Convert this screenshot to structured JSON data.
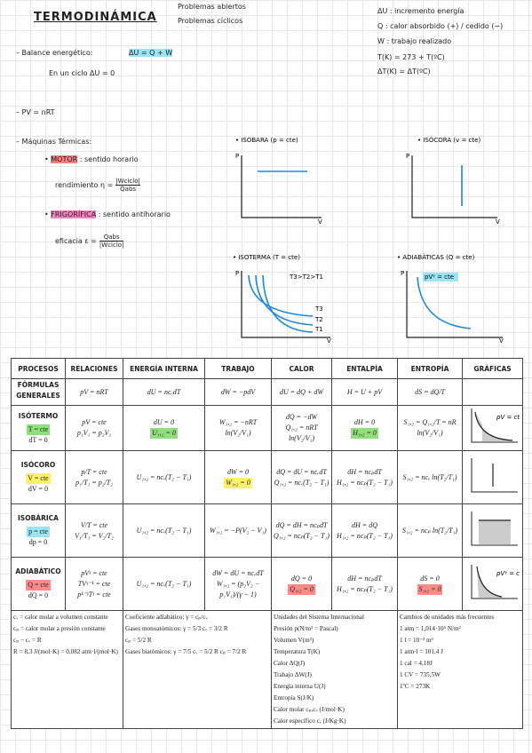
{
  "header": {
    "title": "TERMODINÁMICA",
    "bullets": [
      "Problemas abiertos",
      "Problemas cíclicos"
    ]
  },
  "definitions": [
    "ΔU : incremento energía",
    "Q : calor absorbido (+) / cedido (−)",
    "W : trabajo realizado",
    "T(K) = 273 + T(ºC)",
    "ΔT(K) = ΔT(ºC)"
  ],
  "notes": {
    "balance_label": "– Balance energético:",
    "balance_formula": "ΔU = Q + W",
    "cycle": "En un ciclo  ΔU = 0",
    "gas_law": "– PV = nRT",
    "machines": "– Máquinas Térmicas:",
    "motor": {
      "name": "MOTOR",
      "sense": ": sentido horario",
      "metric": "rendimiento",
      "symbol": "η =",
      "num": "|Wciclo|",
      "den": "Qabs"
    },
    "fridge": {
      "name": "FRIGORÍFICA",
      "sense": ": sentido antihorario",
      "metric": "eficacia",
      "symbol": "ε =",
      "num": "Qabs",
      "den": "|Wciclo|"
    }
  },
  "graphs": [
    {
      "title": "• ISOBARA (p = cte)",
      "y": "P",
      "x": "V"
    },
    {
      "title": "• ISÓCORA (v = cte)",
      "y": "P",
      "x": "V"
    },
    {
      "title": "• ISOTERMA (T = cte)",
      "y": "P",
      "x": "V",
      "labels": [
        "T3>T2>T1",
        "T3",
        "T2",
        "T1"
      ]
    },
    {
      "title": "• ADIABÁTICAS (Q = cte)",
      "y": "P",
      "x": "V",
      "labels": [
        "pVᵞ = cte"
      ]
    }
  ],
  "table": {
    "headers": [
      "PROCESOS",
      "RELACIONES",
      "ENERGÍA INTERNA",
      "TRABAJO",
      "CALOR",
      "ENTALPÍA",
      "ENTROPÍA",
      "GRÁFICAS"
    ],
    "rows": [
      [
        [
          "FÓRMULAS GENERALES"
        ],
        [
          "pV = nRT"
        ],
        [
          "dU = ncᵥdT"
        ],
        [
          "dW = −pdV"
        ],
        [
          "dU = dQ + dW"
        ],
        [
          "H = U + pV"
        ],
        [
          "dS = dQ/T"
        ],
        []
      ],
      [
        [
          "ISÓTERMO",
          "T = cte",
          "dT = 0"
        ],
        [
          "pV = cte",
          "p₁V₁ = p₂V₂"
        ],
        [
          "dU = 0",
          "U₁,₂ = 0"
        ],
        [
          "W₁,₂ = −nRT ln(V₂/V₁)"
        ],
        [
          "dQ = −dW",
          "Q₁,₂ = nRT ln(V₂/V₁)"
        ],
        [
          "dH = 0",
          "H₁,₂ = 0"
        ],
        [
          "S₁,₂ = Q₁,₂/T = nR ln(V₂/V₁)"
        ],
        [
          "pV = cte"
        ]
      ],
      [
        [
          "ISÓCORO",
          "V = cte",
          "dV = 0"
        ],
        [
          "p/T = cte",
          "p₁/T₁ = p₂/T₂"
        ],
        [
          "U₁,₂ = ncᵥ(T₂ − T₁)"
        ],
        [
          "dW = 0",
          "W₁,₂ = 0"
        ],
        [
          "dQ = dU = ncᵥdT",
          "Q₁,₂ = ncᵥ(T₂ − T₁)"
        ],
        [
          "dH = ncₚdT",
          "H₁,₂ = ncₚ(T₂ − T₁)"
        ],
        [
          "S₁,₂ = ncᵥ ln(T₂/T₁)"
        ],
        []
      ],
      [
        [
          "ISOBÁRICA",
          "p = cte",
          "dp = 0"
        ],
        [
          "V/T = cte",
          "V₁/T₁ = V₂/T₂"
        ],
        [
          "U₁,₂ = ncᵥ(T₂ − T₁)"
        ],
        [
          "W₁,₂ = −P(V₂ − V₁)"
        ],
        [
          "dQ = dH = ncₚdT",
          "Q₁,₂ = ncₚ(T₂ − T₁)"
        ],
        [
          "dH = dQ",
          "H₁,₂ = ncₚ(T₂ − T₁)"
        ],
        [
          "S₁,₂ = ncₚ ln(T₂/T₁)"
        ],
        []
      ],
      [
        [
          "ADIABÁTICO",
          "Q = cte",
          "dQ = 0"
        ],
        [
          "pVᵞ = cte",
          "TVᵞ⁻¹ = cte",
          "p¹⁻ᵞTᵞ = cte"
        ],
        [
          "U₁,₂ = ncᵥ(T₂ − T₁)"
        ],
        [
          "dW = dU = ncᵥdT",
          "W₁,₂ = (p₂V₂ − p₁V₁)/(γ − 1)"
        ],
        [
          "dQ = 0",
          "Q₁,₂ = 0"
        ],
        [
          "dH = ncₚdT",
          "H₁,₂ = ncₚ(T₂ − T₁)"
        ],
        [
          "dS = 0",
          "S₁,₂ = 0"
        ],
        [
          "pVᵞ = cte"
        ]
      ]
    ],
    "footer": [
      [
        "cᵥ = calor molar a volumen constante",
        "cₚ = calor molar a presión constante",
        "cₚ − cᵥ = R",
        "R = 8,3 J/(mol·K) = 0,082 atm·l/(mol·K)"
      ],
      [
        "Coeficiente adiabático: γ = cₚ/cᵥ",
        "Gases monoatómicos: γ = 5/3  cᵥ = 3/2 R",
        "cₚ = 5/2 R",
        "Gases biatómicos: γ = 7/5  cᵥ = 5/2 R  cₚ = 7/2 R"
      ],
      [
        "Unidades del Sistema Internacional",
        "Presión  p(N/m² = Pascal)",
        "Volumen  V(m³)",
        "Temperatura  T(K)",
        "Calor  ΔQ(J)",
        "Trabajo  ΔW(J)",
        "Energía interna  U(J)",
        "Entropía  S(J/K)",
        "Calor molar  cₚ,cᵥ (J/mol·K)",
        "Calor específico  cₑ (J/Kg·K)"
      ],
      [
        "Cambios de unidades más frecuentes",
        "1 atm = 1,014·10⁵ N/m²",
        "1 l = 10⁻³ m³",
        "1 atm·l = 101,4 J",
        "1 cal = 4,18J",
        "1 CV = 735,5W",
        "1ºC = 273K"
      ]
    ]
  }
}
